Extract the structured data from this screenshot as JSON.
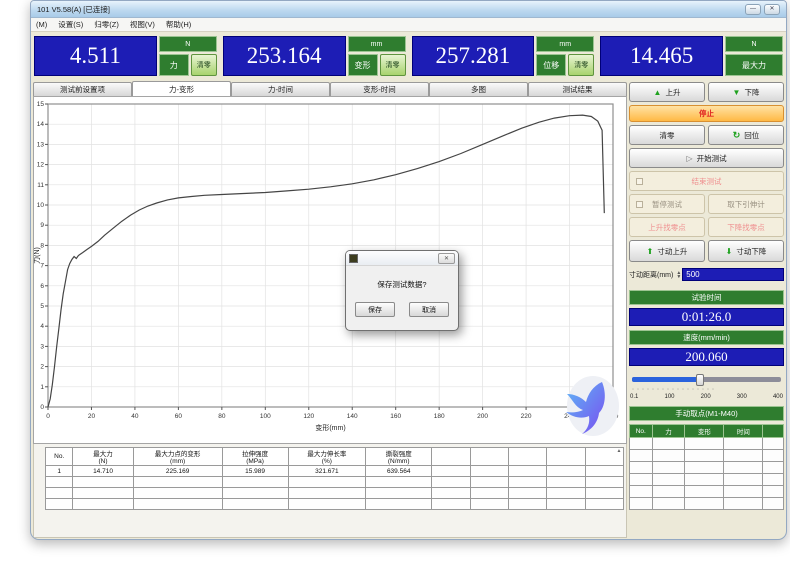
{
  "window": {
    "title": "101  V5.58(A)   [已连接]",
    "menu": [
      "(M)",
      "设置(S)",
      "归零(Z)",
      "视图(V)",
      "帮助(H)"
    ],
    "minimize": "—",
    "close": "✕"
  },
  "displays": [
    {
      "value": "4.511",
      "unit": "N",
      "label": "力",
      "clear": "清零"
    },
    {
      "value": "253.164",
      "unit": "mm",
      "label": "变形",
      "clear": "清零"
    },
    {
      "value": "257.281",
      "unit": "mm",
      "label": "位移",
      "clear": "清零"
    },
    {
      "value": "14.465",
      "unit": "N",
      "label": "最大力",
      "clear": null
    }
  ],
  "tabs": {
    "items": [
      "测试前设置项",
      "力-变形",
      "力-时间",
      "变形-时间",
      "多图",
      "测试结果"
    ],
    "active": 1
  },
  "chart_data": {
    "type": "line",
    "title": "",
    "xlabel": "变形(mm)",
    "ylabel": "力(N)",
    "xlim": [
      0,
      260
    ],
    "ylim": [
      0,
      15
    ],
    "xtick_step": 20,
    "ytick_step": 1,
    "grid": true,
    "legend": "none",
    "series": [
      {
        "name": "力-变形",
        "points": [
          [
            0,
            0
          ],
          [
            1,
            0.4
          ],
          [
            2,
            1.1
          ],
          [
            3,
            2.0
          ],
          [
            4,
            3.0
          ],
          [
            5,
            3.9
          ],
          [
            6,
            4.8
          ],
          [
            7,
            5.6
          ],
          [
            8,
            6.2
          ],
          [
            9,
            6.8
          ],
          [
            10,
            7.1
          ],
          [
            11,
            7.3
          ],
          [
            12,
            7.45
          ],
          [
            13,
            7.35
          ],
          [
            14,
            7.5
          ],
          [
            16,
            7.65
          ],
          [
            18,
            7.8
          ],
          [
            20,
            7.95
          ],
          [
            23,
            8.2
          ],
          [
            26,
            8.5
          ],
          [
            30,
            8.85
          ],
          [
            34,
            9.2
          ],
          [
            38,
            9.5
          ],
          [
            42,
            9.75
          ],
          [
            46,
            9.95
          ],
          [
            50,
            10.1
          ],
          [
            55,
            10.25
          ],
          [
            60,
            10.35
          ],
          [
            66,
            10.42
          ],
          [
            72,
            10.48
          ],
          [
            80,
            10.52
          ],
          [
            90,
            10.57
          ],
          [
            100,
            10.62
          ],
          [
            110,
            10.7
          ],
          [
            120,
            10.78
          ],
          [
            130,
            10.9
          ],
          [
            140,
            11.05
          ],
          [
            150,
            11.25
          ],
          [
            160,
            11.5
          ],
          [
            170,
            11.8
          ],
          [
            180,
            12.15
          ],
          [
            190,
            12.55
          ],
          [
            200,
            13.0
          ],
          [
            210,
            13.45
          ],
          [
            218,
            13.8
          ],
          [
            226,
            14.1
          ],
          [
            233,
            14.3
          ],
          [
            240,
            14.42
          ],
          [
            246,
            14.45
          ],
          [
            250,
            14.38
          ],
          [
            253,
            14.15
          ],
          [
            255,
            13.7
          ],
          [
            256,
            9.6
          ]
        ]
      }
    ]
  },
  "results": {
    "headers": [
      [
        "No.",
        ""
      ],
      [
        "最大力",
        "(N)"
      ],
      [
        "最大力点的变形",
        "(mm)"
      ],
      [
        "拉伸强度",
        "(MPa)"
      ],
      [
        "最大力伸长率",
        "(%)"
      ],
      [
        "撕裂强度",
        "(N/mm)"
      ]
    ],
    "rows": [
      [
        "1",
        "14.710",
        "225.169",
        "15.989",
        "321.671",
        "639.564"
      ]
    ],
    "empty_cols": 5,
    "empty_rows": 3
  },
  "panel": {
    "up": "上升",
    "down": "下降",
    "stop": "停止",
    "zero": "清零",
    "home": "回位",
    "start": "开始测试",
    "end": "结束测试",
    "pause": "暂停测试",
    "detach": "取下引伸计",
    "up_find": "上升找零点",
    "down_find": "下降找零点",
    "jog_up": "寸动上升",
    "jog_down": "寸动下降",
    "jog_label": "寸动距离(mm)",
    "jog_value": "500",
    "time_label": "试验时间",
    "time_value": "0:01:26.0",
    "speed_label": "速度(mm/min)",
    "speed_value": "200.060",
    "slider_labels": [
      "0.1",
      "100",
      "200",
      "300",
      "400"
    ],
    "slider_fill_pct": 46,
    "manual_label": "手动取点(M1-M40)",
    "manual_columns": [
      "No.",
      "力",
      "变形",
      "时间",
      ""
    ],
    "manual_empty_rows": 6
  },
  "dialog": {
    "message": "保存测试数据?",
    "save": "保存",
    "cancel": "取消"
  },
  "colors": {
    "accent_blue": "#1d1db5",
    "green": "#2f7d2f",
    "stop_orange": "#ffb945",
    "curve": "#454545",
    "bird_from": "#5db6f5",
    "bird_to": "#7a4ef0"
  }
}
